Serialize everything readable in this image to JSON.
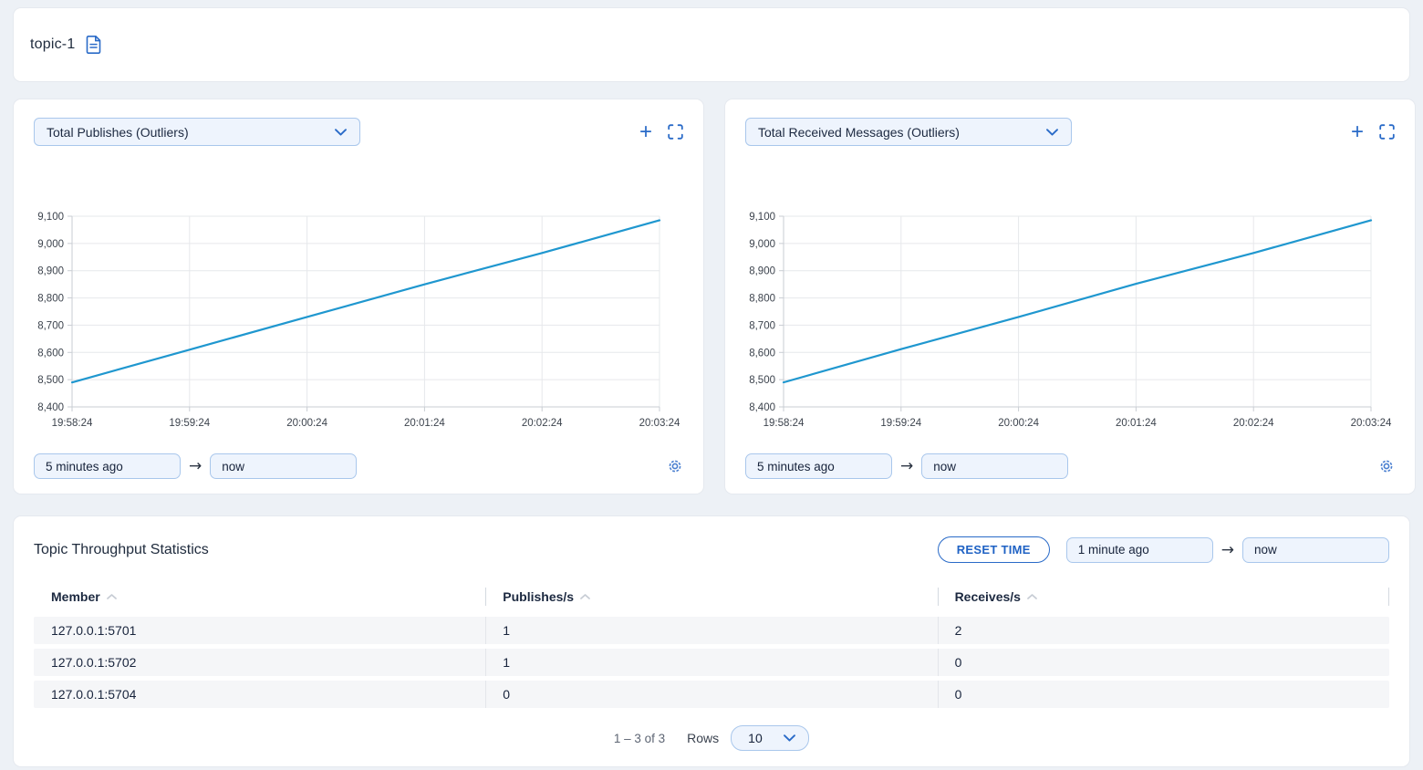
{
  "header": {
    "title": "topic-1"
  },
  "charts": [
    {
      "selector_label": "Total Publishes (Outliers)",
      "from_value": "5 minutes ago",
      "to_value": "now"
    },
    {
      "selector_label": "Total Received Messages (Outliers)",
      "from_value": "5 minutes ago",
      "to_value": "now"
    }
  ],
  "chart_data": [
    {
      "type": "line",
      "title": "Total Publishes (Outliers)",
      "x": [
        "19:58:24",
        "19:59:24",
        "20:00:24",
        "20:01:24",
        "20:02:24",
        "20:03:24"
      ],
      "series": [
        {
          "name": "Total Publishes",
          "values": [
            8490,
            8610,
            8730,
            8850,
            8965,
            9085
          ]
        }
      ],
      "ylim": [
        8400,
        9100
      ],
      "ytick_step": 100,
      "grid": true,
      "legend": false,
      "line_color": "#1f97cf"
    },
    {
      "type": "line",
      "title": "Total Received Messages (Outliers)",
      "x": [
        "19:58:24",
        "19:59:24",
        "20:00:24",
        "20:01:24",
        "20:02:24",
        "20:03:24"
      ],
      "series": [
        {
          "name": "Total Received Messages",
          "values": [
            8490,
            8612,
            8730,
            8852,
            8965,
            9085
          ]
        }
      ],
      "ylim": [
        8400,
        9100
      ],
      "ytick_step": 100,
      "grid": true,
      "legend": false,
      "line_color": "#1f97cf"
    }
  ],
  "stats": {
    "title": "Topic Throughput Statistics",
    "reset_button_label": "RESET TIME",
    "from_value": "1 minute ago",
    "to_value": "now",
    "table": {
      "columns": [
        "Member",
        "Publishes/s",
        "Receives/s"
      ],
      "rows": [
        [
          "127.0.0.1:5701",
          "1",
          "2"
        ],
        [
          "127.0.0.1:5702",
          "1",
          "0"
        ],
        [
          "127.0.0.1:5704",
          "0",
          "0"
        ]
      ]
    },
    "pagination": {
      "range_text": "1 – 3 of 3",
      "rows_label": "Rows",
      "rows_per_page": "10"
    }
  },
  "colors": {
    "accent_blue": "#2a6bc8",
    "line_blue": "#1f97cf",
    "control_bg": "#eef4fd",
    "control_border": "#a9c7ec",
    "page_bg": "#edf1f6"
  }
}
